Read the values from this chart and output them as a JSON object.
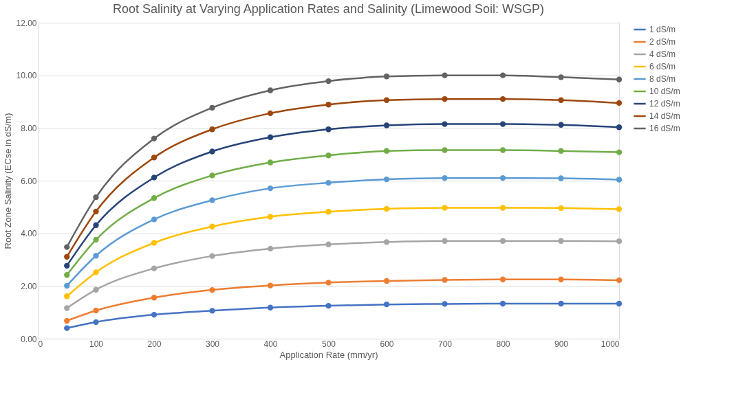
{
  "chart_data": {
    "type": "line",
    "title": "Root Salinity at Varying Application Rates and Salinity (Limewood Soil: WSGP)",
    "xlabel": "Application Rate (mm/yr)",
    "ylabel": "Root Zone Salinity (ECse in dS/m)",
    "x": [
      50,
      100,
      200,
      300,
      400,
      500,
      600,
      700,
      800,
      900,
      1000
    ],
    "series": [
      {
        "name": "1 dS/m",
        "color": "#4472c4",
        "values": [
          0.4,
          0.63,
          0.91,
          1.06,
          1.18,
          1.25,
          1.3,
          1.32,
          1.33,
          1.33,
          1.33
        ]
      },
      {
        "name": "2 dS/m",
        "color": "#ed7d31",
        "values": [
          0.68,
          1.07,
          1.56,
          1.85,
          2.02,
          2.13,
          2.19,
          2.23,
          2.25,
          2.25,
          2.22
        ]
      },
      {
        "name": "4 dS/m",
        "color": "#a5a5a5",
        "values": [
          1.16,
          1.86,
          2.67,
          3.14,
          3.42,
          3.58,
          3.67,
          3.71,
          3.71,
          3.71,
          3.7
        ]
      },
      {
        "name": "6 dS/m",
        "color": "#ffc000",
        "values": [
          1.61,
          2.52,
          3.64,
          4.26,
          4.63,
          4.82,
          4.93,
          4.97,
          4.97,
          4.96,
          4.92
        ]
      },
      {
        "name": "8 dS/m",
        "color": "#5b9bd5",
        "values": [
          2.01,
          3.15,
          4.53,
          5.26,
          5.71,
          5.92,
          6.05,
          6.1,
          6.1,
          6.09,
          6.04
        ]
      },
      {
        "name": "10 dS/m",
        "color": "#70ad47",
        "values": [
          2.42,
          3.76,
          5.34,
          6.2,
          6.69,
          6.96,
          7.13,
          7.16,
          7.16,
          7.13,
          7.08
        ]
      },
      {
        "name": "12 dS/m",
        "color": "#264478",
        "values": [
          2.77,
          4.31,
          6.12,
          7.11,
          7.65,
          7.95,
          8.1,
          8.15,
          8.15,
          8.12,
          8.03
        ]
      },
      {
        "name": "14 dS/m",
        "color": "#9e480e",
        "values": [
          3.11,
          4.83,
          6.88,
          7.95,
          8.56,
          8.89,
          9.06,
          9.1,
          9.1,
          9.06,
          8.95
        ]
      },
      {
        "name": "16 dS/m",
        "color": "#636363",
        "values": [
          3.48,
          5.37,
          7.6,
          8.77,
          9.43,
          9.78,
          9.96,
          10.0,
          10.0,
          9.93,
          9.84
        ]
      }
    ],
    "xlim": [
      0,
      1000
    ],
    "xticks": [
      0,
      100,
      200,
      300,
      400,
      500,
      600,
      700,
      800,
      900,
      1000
    ],
    "ylim": [
      0,
      12
    ],
    "yticks": [
      {
        "value": 0,
        "label": "0.00"
      },
      {
        "value": 2,
        "label": "2.00"
      },
      {
        "value": 4,
        "label": "4.00"
      },
      {
        "value": 6,
        "label": "6.00"
      },
      {
        "value": 8,
        "label": "8.00"
      },
      {
        "value": 10,
        "label": "10.00"
      },
      {
        "value": 12,
        "label": "12.00"
      }
    ],
    "grid": "y",
    "legend": "right",
    "marker": "circle",
    "line_style": "solid"
  }
}
